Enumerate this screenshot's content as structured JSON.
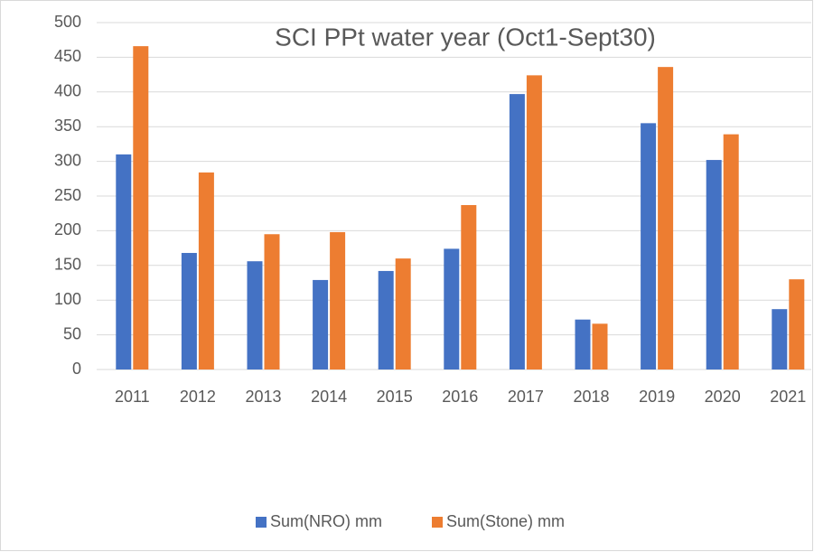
{
  "chart_data": {
    "type": "bar",
    "title": "SCI PPt water year (Oct1-Sept30)",
    "categories": [
      "2011",
      "2012",
      "2013",
      "2014",
      "2015",
      "2016",
      "2017",
      "2018",
      "2019",
      "2020",
      "2021"
    ],
    "series": [
      {
        "name": "Sum(NRO) mm",
        "color": "#4472c4",
        "values": [
          310,
          168,
          156,
          129,
          142,
          174,
          397,
          72,
          355,
          302,
          87
        ]
      },
      {
        "name": "Sum(Stone) mm",
        "color": "#ed7d31",
        "values": [
          466,
          284,
          195,
          198,
          160,
          237,
          424,
          66,
          436,
          339,
          130
        ]
      }
    ],
    "ylim": [
      0,
      500
    ],
    "yticks": [
      0,
      50,
      100,
      150,
      200,
      250,
      300,
      350,
      400,
      450,
      500
    ],
    "grid": true,
    "legend": "bottom"
  }
}
